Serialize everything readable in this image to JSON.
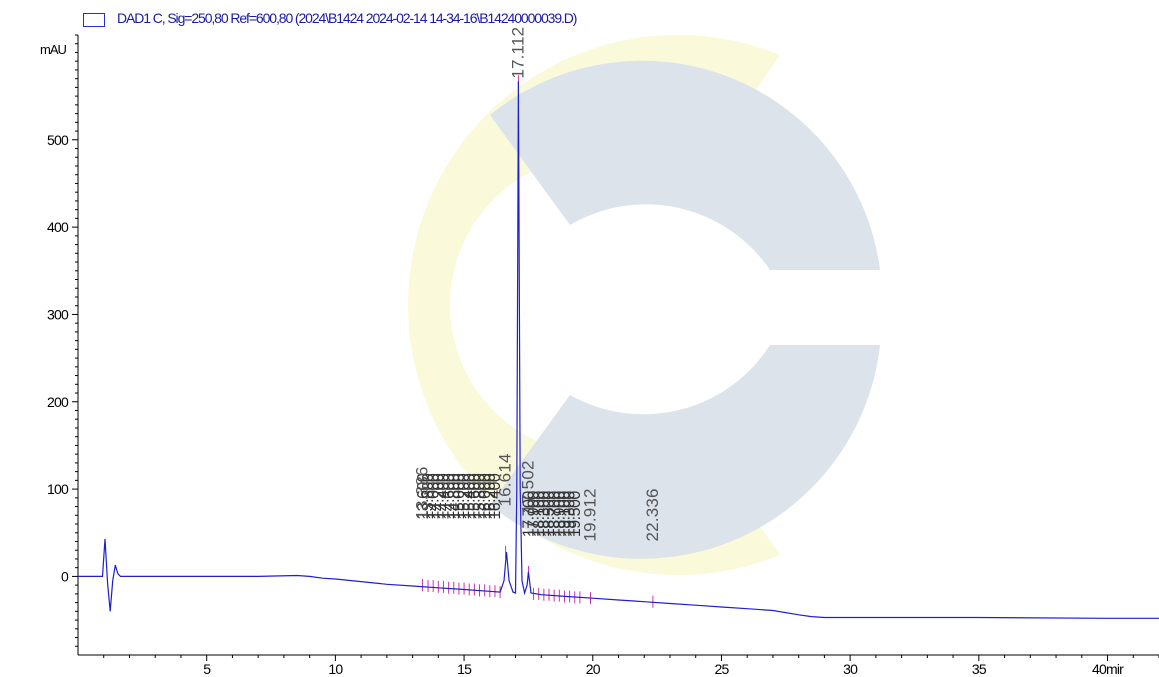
{
  "legend": {
    "label": "DAD1 C, Sig=250,80 Ref=600,80 (2024\\B1424 2024-02-14 14-34-16\\B14240000039.D)",
    "color": "#2233cc"
  },
  "y_unit": "mAU",
  "x_unit_visible": "mir",
  "chart_data": {
    "type": "line",
    "title": "",
    "xlabel": "min",
    "ylabel": "mAU",
    "xlim": [
      0,
      42
    ],
    "ylim": [
      -90,
      620
    ],
    "x_ticks": [
      5,
      10,
      15,
      20,
      25,
      30,
      35,
      40
    ],
    "y_ticks": [
      0,
      100,
      200,
      300,
      400,
      500
    ],
    "minor_x_step": 1,
    "minor_y_step": 10,
    "line_color": "#1f1fcc",
    "series": [
      {
        "values_x": [
          0.0,
          0.95,
          1.05,
          1.15,
          1.25,
          1.35,
          1.45,
          1.55,
          1.65,
          1.8,
          3,
          5,
          7,
          8.5,
          9,
          9.5,
          10,
          11,
          12,
          13,
          14,
          15,
          16,
          16.4,
          16.55,
          16.65,
          16.75,
          16.9,
          17.0,
          17.05,
          17.112,
          17.18,
          17.25,
          17.35,
          17.45,
          17.5,
          17.6,
          18,
          19,
          20,
          21,
          22,
          23,
          24,
          25,
          26,
          27,
          28,
          28.5,
          29,
          30,
          35,
          40,
          42
        ],
        "values_y": [
          0,
          0,
          43,
          -8,
          -40,
          -5,
          13,
          3,
          0,
          0,
          0,
          0,
          0,
          1,
          0,
          -2,
          -3,
          -6,
          -9,
          -11,
          -13,
          -15,
          -17,
          -18,
          -5,
          28,
          -5,
          -18,
          -19,
          100,
          567,
          100,
          -5,
          -19,
          -10,
          5,
          -19,
          -21,
          -23,
          -25,
          -27,
          -29,
          -31,
          -33,
          -35,
          -37,
          -39,
          -44,
          -46,
          -47,
          -47,
          -47,
          -48,
          -48
        ]
      }
    ],
    "peaks": [
      {
        "rt": 13.386,
        "y": -10,
        "label_y": 65
      },
      {
        "rt": 13.6,
        "y": -11,
        "label_y": 65
      },
      {
        "rt": 13.8,
        "y": -11,
        "label_y": 65
      },
      {
        "rt": 14.0,
        "y": -12,
        "label_y": 65
      },
      {
        "rt": 14.2,
        "y": -12,
        "label_y": 65
      },
      {
        "rt": 14.4,
        "y": -13,
        "label_y": 65
      },
      {
        "rt": 14.6,
        "y": -13,
        "label_y": 65
      },
      {
        "rt": 14.8,
        "y": -14,
        "label_y": 65
      },
      {
        "rt": 15.0,
        "y": -14,
        "label_y": 65
      },
      {
        "rt": 15.2,
        "y": -15,
        "label_y": 65
      },
      {
        "rt": 15.4,
        "y": -15,
        "label_y": 65
      },
      {
        "rt": 15.6,
        "y": -16,
        "label_y": 65
      },
      {
        "rt": 15.8,
        "y": -16,
        "label_y": 65
      },
      {
        "rt": 16.0,
        "y": -17,
        "label_y": 65
      },
      {
        "rt": 16.2,
        "y": -17,
        "label_y": 65
      },
      {
        "rt": 16.4,
        "y": -18,
        "label_y": 65
      },
      {
        "rt": 16.614,
        "y": 28,
        "label_y": 78
      },
      {
        "rt": 17.112,
        "y": 567,
        "label_y": 570
      },
      {
        "rt": 17.502,
        "y": 5,
        "label_y": 70
      },
      {
        "rt": 17.7,
        "y": -20,
        "label_y": 45
      },
      {
        "rt": 17.9,
        "y": -20,
        "label_y": 45
      },
      {
        "rt": 18.1,
        "y": -21,
        "label_y": 45
      },
      {
        "rt": 18.3,
        "y": -21,
        "label_y": 45
      },
      {
        "rt": 18.5,
        "y": -22,
        "label_y": 45
      },
      {
        "rt": 18.7,
        "y": -22,
        "label_y": 45
      },
      {
        "rt": 18.9,
        "y": -23,
        "label_y": 45
      },
      {
        "rt": 19.1,
        "y": -23,
        "label_y": 45
      },
      {
        "rt": 19.3,
        "y": -24,
        "label_y": 45
      },
      {
        "rt": 19.5,
        "y": -24,
        "label_y": 45
      },
      {
        "rt": 19.912,
        "y": -25,
        "label_y": 45
      },
      {
        "rt": 22.336,
        "y": -29,
        "label_y": 45
      }
    ],
    "peak_labels": [
      {
        "rt": 13.386,
        "text": "13.386",
        "y": 65,
        "color": "#555555"
      },
      {
        "rt": 16.614,
        "text": "16.614",
        "y": 80,
        "color": "#555555"
      },
      {
        "rt": 17.112,
        "text": "17.112",
        "y": 570,
        "color": "#555555"
      },
      {
        "rt": 17.502,
        "text": "17.502",
        "y": 72,
        "color": "#555555"
      },
      {
        "rt": 19.912,
        "text": "19.912",
        "y": 40,
        "color": "#555555"
      },
      {
        "rt": 22.336,
        "text": "22.336",
        "y": 40,
        "color": "#555555"
      }
    ]
  }
}
